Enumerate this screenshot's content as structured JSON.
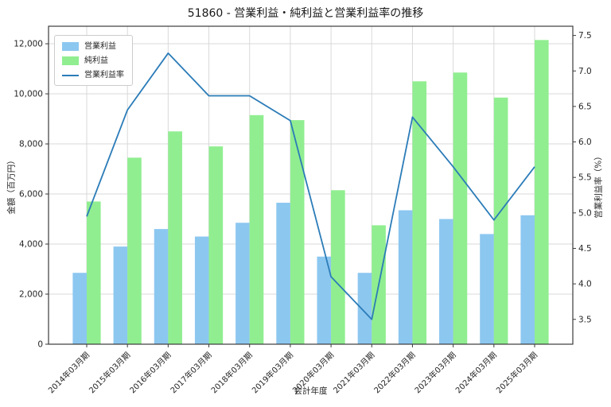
{
  "title": "51860 - 営業利益・純利益と営業利益率の推移",
  "chart_data": {
    "type": "bar",
    "categories": [
      "2014年03月期",
      "2015年03月期",
      "2016年03月期",
      "2017年03月期",
      "2018年03月期",
      "2019年03月期",
      "2020年03月期",
      "2021年03月期",
      "2022年03月期",
      "2023年03月期",
      "2024年03月期",
      "2025年03月期"
    ],
    "series": [
      {
        "name": "営業利益",
        "type": "bar",
        "axis": "left",
        "color": "#8CC7F0",
        "values": [
          2850,
          3900,
          4600,
          4300,
          4850,
          5650,
          3500,
          2850,
          5350,
          5000,
          4400,
          5150
        ]
      },
      {
        "name": "純利益",
        "type": "bar",
        "axis": "left",
        "color": "#90EE90",
        "values": [
          5700,
          7450,
          8500,
          7900,
          9150,
          8950,
          6150,
          4750,
          10500,
          10850,
          9850,
          12150
        ]
      },
      {
        "name": "営業利益率",
        "type": "line",
        "axis": "right",
        "color": "#2B7CB8",
        "values": [
          4.95,
          6.45,
          7.25,
          6.65,
          6.65,
          6.3,
          4.1,
          3.5,
          6.35,
          5.65,
          4.9,
          5.65
        ]
      }
    ],
    "title": "51860 - 営業利益・純利益と営業利益率の推移",
    "xlabel": "会計年度",
    "ylabel_left": "金額（百万円）",
    "ylabel_right": "営業利益率（%）",
    "ylim_left": [
      0,
      12700
    ],
    "ylim_right": [
      3.15,
      7.63
    ],
    "yticks_left": [
      0,
      2000,
      4000,
      6000,
      8000,
      10000,
      12000
    ],
    "yticks_right": [
      3.5,
      4.0,
      4.5,
      5.0,
      5.5,
      6.0,
      6.5,
      7.0,
      7.5
    ],
    "grid": true,
    "legend_position": "upper-left",
    "colors": {
      "grid": "#D9D9D9",
      "spine": "#3B3B3B",
      "text": "#262626"
    }
  }
}
